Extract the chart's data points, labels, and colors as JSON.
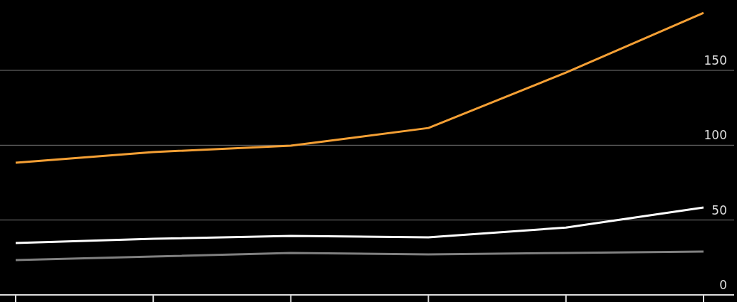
{
  "chart_data": {
    "type": "line",
    "categories": [
      null,
      null,
      null,
      null,
      null,
      null
    ],
    "series": [
      {
        "color": "#f5a035",
        "values": [
          88.3,
          95.4,
          99.7,
          111.5,
          148.5,
          188.4
        ]
      },
      {
        "color": "#ffffff",
        "values": [
          34.6,
          37.5,
          39.4,
          38.4,
          45,
          58.4
        ]
      },
      {
        "color": "#808080",
        "values": [
          23.3,
          25.6,
          28,
          27,
          28,
          29
        ]
      }
    ],
    "ylim": [
      0,
      197
    ],
    "yticks": [
      0,
      50,
      100,
      150
    ],
    "grid": "y",
    "marker": "none",
    "line_style": "solid"
  }
}
